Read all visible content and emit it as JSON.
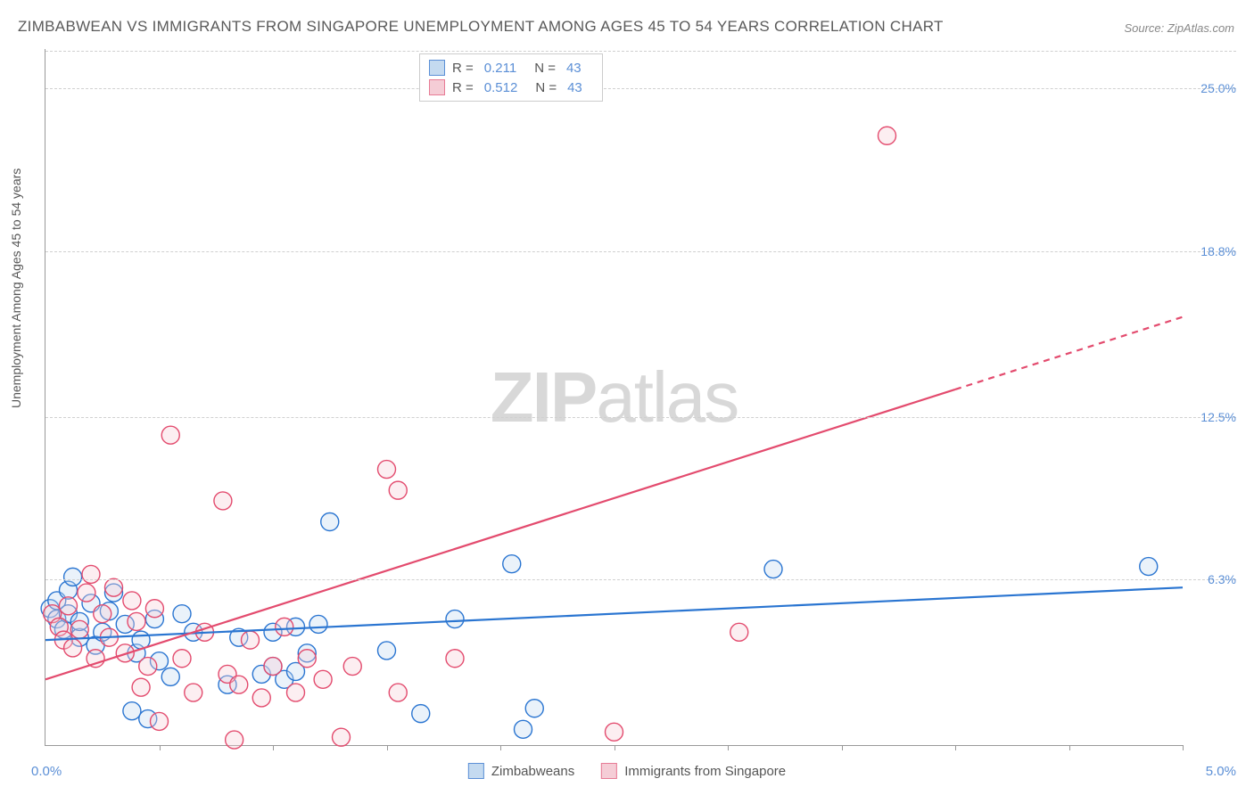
{
  "title": "ZIMBABWEAN VS IMMIGRANTS FROM SINGAPORE UNEMPLOYMENT AMONG AGES 45 TO 54 YEARS CORRELATION CHART",
  "source": "Source: ZipAtlas.com",
  "y_axis_label": "Unemployment Among Ages 45 to 54 years",
  "watermark_zip": "ZIP",
  "watermark_atlas": "atlas",
  "x_min_label": "0.0%",
  "x_max_label": "5.0%",
  "chart": {
    "type": "scatter",
    "xlim": [
      0,
      5.0
    ],
    "ylim": [
      0,
      26.5
    ],
    "y_ticks": [
      {
        "v": 6.3,
        "label": "6.3%"
      },
      {
        "v": 12.5,
        "label": "12.5%"
      },
      {
        "v": 18.8,
        "label": "18.8%"
      },
      {
        "v": 25.0,
        "label": "25.0%"
      }
    ],
    "x_tick_positions": [
      0.5,
      1.0,
      1.5,
      2.0,
      2.5,
      3.0,
      3.5,
      4.0,
      4.5,
      5.0
    ],
    "marker_radius": 10,
    "marker_stroke_width": 1.4,
    "marker_fill_opacity": 0.35,
    "line_width": 2.2,
    "background_color": "#ffffff",
    "grid_color": "#d0d0d0",
    "series": [
      {
        "name": "Zimbabweans",
        "color": "#2a75d1",
        "fill": "#c4daf0",
        "points": [
          [
            0.02,
            5.2
          ],
          [
            0.05,
            4.8
          ],
          [
            0.05,
            5.5
          ],
          [
            0.08,
            4.4
          ],
          [
            0.1,
            5.0
          ],
          [
            0.1,
            5.9
          ],
          [
            0.12,
            6.4
          ],
          [
            0.15,
            4.1
          ],
          [
            0.15,
            4.7
          ],
          [
            0.2,
            5.4
          ],
          [
            0.22,
            3.8
          ],
          [
            0.25,
            4.3
          ],
          [
            0.28,
            5.1
          ],
          [
            0.3,
            5.8
          ],
          [
            0.35,
            4.6
          ],
          [
            0.38,
            1.3
          ],
          [
            0.4,
            3.5
          ],
          [
            0.42,
            4.0
          ],
          [
            0.45,
            1.0
          ],
          [
            0.48,
            4.8
          ],
          [
            0.5,
            3.2
          ],
          [
            0.55,
            2.6
          ],
          [
            0.6,
            5.0
          ],
          [
            0.65,
            4.3
          ],
          [
            0.8,
            2.3
          ],
          [
            0.85,
            4.1
          ],
          [
            0.95,
            2.7
          ],
          [
            1.0,
            4.3
          ],
          [
            1.0,
            3.0
          ],
          [
            1.05,
            2.5
          ],
          [
            1.1,
            2.8
          ],
          [
            1.1,
            4.5
          ],
          [
            1.15,
            3.5
          ],
          [
            1.2,
            4.6
          ],
          [
            1.25,
            8.5
          ],
          [
            1.5,
            3.6
          ],
          [
            1.65,
            1.2
          ],
          [
            1.8,
            4.8
          ],
          [
            2.05,
            6.9
          ],
          [
            2.1,
            0.6
          ],
          [
            2.15,
            1.4
          ],
          [
            3.2,
            6.7
          ],
          [
            4.85,
            6.8
          ]
        ],
        "trend": {
          "y_at_xmin": 4.0,
          "y_at_xmax": 6.0,
          "dash_from_x": null
        }
      },
      {
        "name": "Immigrants from Singapore",
        "color": "#e34b6e",
        "fill": "#f5cdd6",
        "points": [
          [
            0.03,
            5.0
          ],
          [
            0.06,
            4.5
          ],
          [
            0.08,
            4.0
          ],
          [
            0.1,
            5.3
          ],
          [
            0.12,
            3.7
          ],
          [
            0.15,
            4.4
          ],
          [
            0.18,
            5.8
          ],
          [
            0.2,
            6.5
          ],
          [
            0.22,
            3.3
          ],
          [
            0.25,
            5.0
          ],
          [
            0.28,
            4.1
          ],
          [
            0.3,
            6.0
          ],
          [
            0.35,
            3.5
          ],
          [
            0.38,
            5.5
          ],
          [
            0.4,
            4.7
          ],
          [
            0.42,
            2.2
          ],
          [
            0.45,
            3.0
          ],
          [
            0.48,
            5.2
          ],
          [
            0.5,
            0.9
          ],
          [
            0.55,
            11.8
          ],
          [
            0.6,
            3.3
          ],
          [
            0.65,
            2.0
          ],
          [
            0.7,
            4.3
          ],
          [
            0.78,
            9.3
          ],
          [
            0.8,
            2.7
          ],
          [
            0.83,
            0.2
          ],
          [
            0.85,
            2.3
          ],
          [
            0.9,
            4.0
          ],
          [
            0.95,
            1.8
          ],
          [
            1.0,
            3.0
          ],
          [
            1.05,
            4.5
          ],
          [
            1.1,
            2.0
          ],
          [
            1.15,
            3.3
          ],
          [
            1.22,
            2.5
          ],
          [
            1.3,
            0.3
          ],
          [
            1.35,
            3.0
          ],
          [
            1.5,
            10.5
          ],
          [
            1.55,
            2.0
          ],
          [
            1.55,
            9.7
          ],
          [
            1.8,
            3.3
          ],
          [
            2.5,
            0.5
          ],
          [
            3.05,
            4.3
          ],
          [
            3.7,
            23.2
          ]
        ],
        "trend": {
          "y_at_xmin": 2.5,
          "y_at_xmax": 16.3,
          "dash_from_x": 4.0
        }
      }
    ]
  },
  "stats": [
    {
      "color": "blue",
      "r_label": "R =",
      "r_val": "0.211",
      "n_label": "N =",
      "n_val": "43"
    },
    {
      "color": "pink",
      "r_label": "R =",
      "r_val": "0.512",
      "n_label": "N =",
      "n_val": "43"
    }
  ],
  "legend": [
    {
      "color": "blue",
      "label": "Zimbabweans"
    },
    {
      "color": "pink",
      "label": "Immigrants from Singapore"
    }
  ]
}
